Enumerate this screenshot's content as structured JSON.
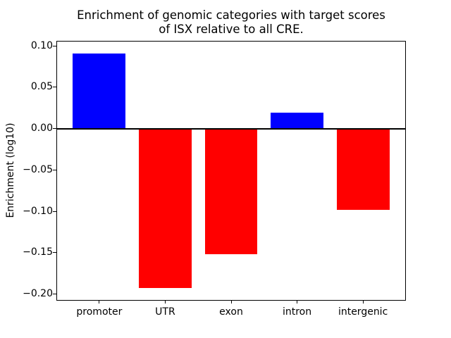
{
  "figure": {
    "title": "Enrichment of genomic categories with target scores\nof ISX relative to all CRE.",
    "ylabel": "Enrichment (log10)"
  },
  "chart_data": {
    "type": "bar",
    "title": "Enrichment of genomic categories with target scores of ISX relative to all CRE.",
    "xlabel": "",
    "ylabel": "Enrichment (log10)",
    "categories": [
      "promoter",
      "UTR",
      "exon",
      "intron",
      "intergenic"
    ],
    "values": [
      0.091,
      -0.193,
      -0.152,
      0.019,
      -0.098
    ],
    "bar_colors": [
      "#0000ff",
      "#ff0000",
      "#ff0000",
      "#0000ff",
      "#ff0000"
    ],
    "positive_color": "#0000ff",
    "negative_color": "#ff0000",
    "axis_color": "#000000",
    "background_color": "#ffffff",
    "ylim": [
      -0.2072,
      0.1052
    ],
    "yticks": [
      0.1,
      0.05,
      0.0,
      -0.05,
      -0.1,
      -0.15,
      -0.2
    ],
    "ytick_labels": [
      "0.10",
      "0.05",
      "0.00",
      "−0.05",
      "−0.10",
      "−0.15",
      "−0.20"
    ],
    "bar_width_frac": 0.8,
    "x_margin": 0.64,
    "grid": false,
    "legend": null,
    "zero_line": true
  }
}
